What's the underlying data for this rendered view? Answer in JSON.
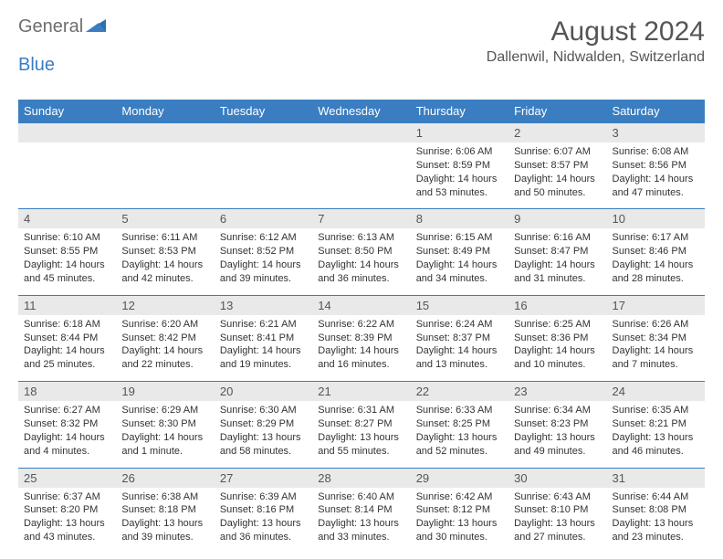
{
  "brand": {
    "word1": "General",
    "word2": "Blue"
  },
  "header": {
    "month_title": "August 2024",
    "location": "Dallenwil, Nidwalden, Switzerland"
  },
  "style": {
    "header_bg": "#3a7ec1",
    "header_text": "#ffffff",
    "date_bg": "#e9e9e9",
    "date_border_top": "#3a7ec1",
    "body_text": "#333333",
    "title_color": "#555555"
  },
  "days_of_week": [
    "Sunday",
    "Monday",
    "Tuesday",
    "Wednesday",
    "Thursday",
    "Friday",
    "Saturday"
  ],
  "weeks": [
    {
      "dates": [
        "",
        "",
        "",
        "",
        "1",
        "2",
        "3"
      ],
      "cells": [
        null,
        null,
        null,
        null,
        {
          "sunrise": "Sunrise: 6:06 AM",
          "sunset": "Sunset: 8:59 PM",
          "daylight": "Daylight: 14 hours and 53 minutes."
        },
        {
          "sunrise": "Sunrise: 6:07 AM",
          "sunset": "Sunset: 8:57 PM",
          "daylight": "Daylight: 14 hours and 50 minutes."
        },
        {
          "sunrise": "Sunrise: 6:08 AM",
          "sunset": "Sunset: 8:56 PM",
          "daylight": "Daylight: 14 hours and 47 minutes."
        }
      ]
    },
    {
      "dates": [
        "4",
        "5",
        "6",
        "7",
        "8",
        "9",
        "10"
      ],
      "cells": [
        {
          "sunrise": "Sunrise: 6:10 AM",
          "sunset": "Sunset: 8:55 PM",
          "daylight": "Daylight: 14 hours and 45 minutes."
        },
        {
          "sunrise": "Sunrise: 6:11 AM",
          "sunset": "Sunset: 8:53 PM",
          "daylight": "Daylight: 14 hours and 42 minutes."
        },
        {
          "sunrise": "Sunrise: 6:12 AM",
          "sunset": "Sunset: 8:52 PM",
          "daylight": "Daylight: 14 hours and 39 minutes."
        },
        {
          "sunrise": "Sunrise: 6:13 AM",
          "sunset": "Sunset: 8:50 PM",
          "daylight": "Daylight: 14 hours and 36 minutes."
        },
        {
          "sunrise": "Sunrise: 6:15 AM",
          "sunset": "Sunset: 8:49 PM",
          "daylight": "Daylight: 14 hours and 34 minutes."
        },
        {
          "sunrise": "Sunrise: 6:16 AM",
          "sunset": "Sunset: 8:47 PM",
          "daylight": "Daylight: 14 hours and 31 minutes."
        },
        {
          "sunrise": "Sunrise: 6:17 AM",
          "sunset": "Sunset: 8:46 PM",
          "daylight": "Daylight: 14 hours and 28 minutes."
        }
      ]
    },
    {
      "dates": [
        "11",
        "12",
        "13",
        "14",
        "15",
        "16",
        "17"
      ],
      "cells": [
        {
          "sunrise": "Sunrise: 6:18 AM",
          "sunset": "Sunset: 8:44 PM",
          "daylight": "Daylight: 14 hours and 25 minutes."
        },
        {
          "sunrise": "Sunrise: 6:20 AM",
          "sunset": "Sunset: 8:42 PM",
          "daylight": "Daylight: 14 hours and 22 minutes."
        },
        {
          "sunrise": "Sunrise: 6:21 AM",
          "sunset": "Sunset: 8:41 PM",
          "daylight": "Daylight: 14 hours and 19 minutes."
        },
        {
          "sunrise": "Sunrise: 6:22 AM",
          "sunset": "Sunset: 8:39 PM",
          "daylight": "Daylight: 14 hours and 16 minutes."
        },
        {
          "sunrise": "Sunrise: 6:24 AM",
          "sunset": "Sunset: 8:37 PM",
          "daylight": "Daylight: 14 hours and 13 minutes."
        },
        {
          "sunrise": "Sunrise: 6:25 AM",
          "sunset": "Sunset: 8:36 PM",
          "daylight": "Daylight: 14 hours and 10 minutes."
        },
        {
          "sunrise": "Sunrise: 6:26 AM",
          "sunset": "Sunset: 8:34 PM",
          "daylight": "Daylight: 14 hours and 7 minutes."
        }
      ]
    },
    {
      "dates": [
        "18",
        "19",
        "20",
        "21",
        "22",
        "23",
        "24"
      ],
      "cells": [
        {
          "sunrise": "Sunrise: 6:27 AM",
          "sunset": "Sunset: 8:32 PM",
          "daylight": "Daylight: 14 hours and 4 minutes."
        },
        {
          "sunrise": "Sunrise: 6:29 AM",
          "sunset": "Sunset: 8:30 PM",
          "daylight": "Daylight: 14 hours and 1 minute."
        },
        {
          "sunrise": "Sunrise: 6:30 AM",
          "sunset": "Sunset: 8:29 PM",
          "daylight": "Daylight: 13 hours and 58 minutes."
        },
        {
          "sunrise": "Sunrise: 6:31 AM",
          "sunset": "Sunset: 8:27 PM",
          "daylight": "Daylight: 13 hours and 55 minutes."
        },
        {
          "sunrise": "Sunrise: 6:33 AM",
          "sunset": "Sunset: 8:25 PM",
          "daylight": "Daylight: 13 hours and 52 minutes."
        },
        {
          "sunrise": "Sunrise: 6:34 AM",
          "sunset": "Sunset: 8:23 PM",
          "daylight": "Daylight: 13 hours and 49 minutes."
        },
        {
          "sunrise": "Sunrise: 6:35 AM",
          "sunset": "Sunset: 8:21 PM",
          "daylight": "Daylight: 13 hours and 46 minutes."
        }
      ]
    },
    {
      "dates": [
        "25",
        "26",
        "27",
        "28",
        "29",
        "30",
        "31"
      ],
      "cells": [
        {
          "sunrise": "Sunrise: 6:37 AM",
          "sunset": "Sunset: 8:20 PM",
          "daylight": "Daylight: 13 hours and 43 minutes."
        },
        {
          "sunrise": "Sunrise: 6:38 AM",
          "sunset": "Sunset: 8:18 PM",
          "daylight": "Daylight: 13 hours and 39 minutes."
        },
        {
          "sunrise": "Sunrise: 6:39 AM",
          "sunset": "Sunset: 8:16 PM",
          "daylight": "Daylight: 13 hours and 36 minutes."
        },
        {
          "sunrise": "Sunrise: 6:40 AM",
          "sunset": "Sunset: 8:14 PM",
          "daylight": "Daylight: 13 hours and 33 minutes."
        },
        {
          "sunrise": "Sunrise: 6:42 AM",
          "sunset": "Sunset: 8:12 PM",
          "daylight": "Daylight: 13 hours and 30 minutes."
        },
        {
          "sunrise": "Sunrise: 6:43 AM",
          "sunset": "Sunset: 8:10 PM",
          "daylight": "Daylight: 13 hours and 27 minutes."
        },
        {
          "sunrise": "Sunrise: 6:44 AM",
          "sunset": "Sunset: 8:08 PM",
          "daylight": "Daylight: 13 hours and 23 minutes."
        }
      ]
    }
  ]
}
